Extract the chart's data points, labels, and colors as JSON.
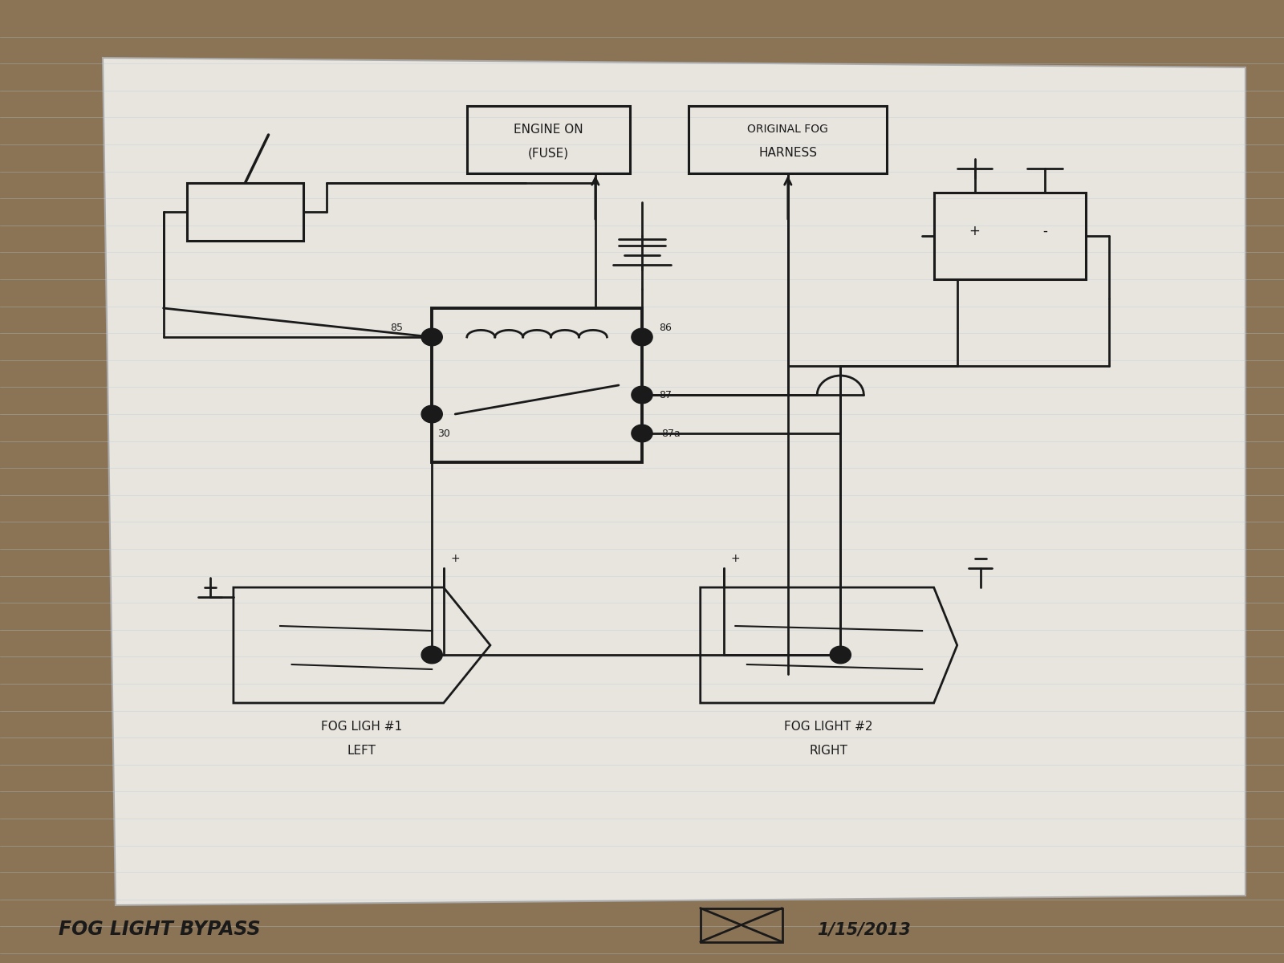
{
  "bg_color": "#8B7355",
  "paper_color": "#E8E5DF",
  "line_color": "#1a1a1a",
  "title_text": "FOG LIGHT BYPASS",
  "date_text": "1/15/2013",
  "label_engine_fuse_1": "ENGINE ON",
  "label_engine_fuse_2": "(FUSE)",
  "label_original_fog_1": "ORIGINAL FOG",
  "label_original_fog_2": "HARNESS",
  "label_fog1_1": "FOG LIGH #1",
  "label_fog1_2": "LEFT",
  "label_fog2_1": "FOG LIGHT #2",
  "label_fog2_2": "RIGHT",
  "grid_color": "#B8C8D8",
  "font_size_label": 11,
  "font_size_pin": 9,
  "font_size_title": 17,
  "font_size_date": 15
}
